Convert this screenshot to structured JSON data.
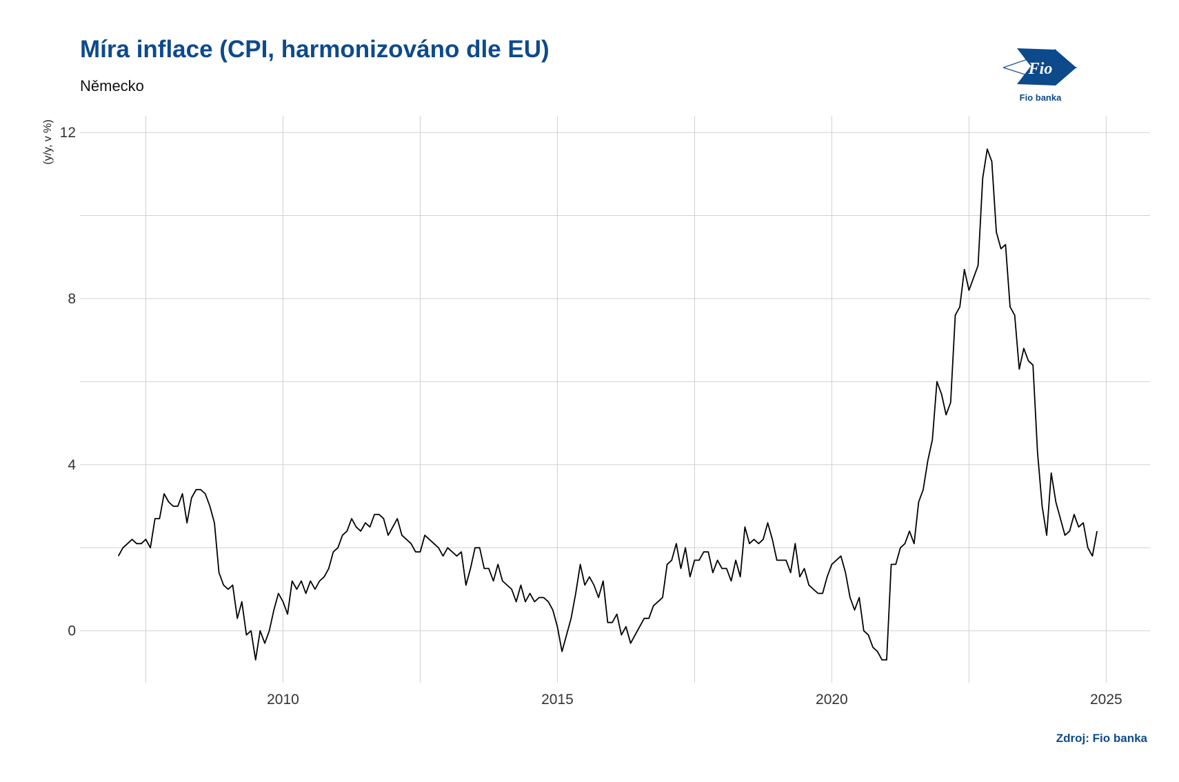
{
  "header": {
    "title": "Míra inflace (CPI, harmonizováno dle EU)",
    "subtitle": "Německo"
  },
  "logo": {
    "mark_text": "Fio",
    "name": "Fio banka",
    "brand_color": "#0d4a8c"
  },
  "source": "Zdroj: Fio banka",
  "colors": {
    "line": "#000000",
    "grid": "#d0d0d0",
    "title": "#0d4a8c"
  },
  "chart_data": {
    "type": "line",
    "title": "Míra inflace (CPI, harmonizováno dle EU)",
    "subtitle": "Německo",
    "ylabel": "(y/y, v %)",
    "xlabel": "",
    "xlim": [
      2006.3,
      2025.8
    ],
    "ylim": [
      -1.25,
      12.4
    ],
    "x_ticks": [
      2010,
      2015,
      2020,
      2025
    ],
    "x_tick_labels": [
      "2010",
      "2015",
      "2020",
      "2025"
    ],
    "y_ticks": [
      0,
      4,
      8,
      12
    ],
    "y_tick_labels": [
      "0",
      "4",
      "8",
      "12"
    ],
    "grid": true,
    "legend": "none",
    "series": [
      {
        "x_start": 2007.0,
        "x_step_months": 1,
        "values": [
          1.8,
          2.0,
          2.1,
          2.2,
          2.1,
          2.1,
          2.2,
          2.0,
          2.7,
          2.7,
          3.3,
          3.1,
          3.0,
          3.0,
          3.3,
          2.6,
          3.2,
          3.4,
          3.4,
          3.3,
          3.0,
          2.6,
          1.4,
          1.1,
          1.0,
          1.1,
          0.3,
          0.7,
          -0.1,
          0.0,
          -0.7,
          0.0,
          -0.3,
          0.0,
          0.5,
          0.9,
          0.7,
          0.4,
          1.2,
          1.0,
          1.2,
          0.9,
          1.2,
          1.0,
          1.2,
          1.3,
          1.5,
          1.9,
          2.0,
          2.3,
          2.4,
          2.7,
          2.5,
          2.4,
          2.6,
          2.5,
          2.8,
          2.8,
          2.7,
          2.3,
          2.5,
          2.7,
          2.3,
          2.2,
          2.1,
          1.9,
          1.9,
          2.3,
          2.2,
          2.1,
          2.0,
          1.8,
          2.0,
          1.9,
          1.8,
          1.9,
          1.1,
          1.5,
          2.0,
          2.0,
          1.5,
          1.5,
          1.2,
          1.6,
          1.2,
          1.1,
          1.0,
          0.7,
          1.1,
          0.7,
          0.9,
          0.7,
          0.8,
          0.8,
          0.7,
          0.5,
          0.1,
          -0.5,
          -0.1,
          0.3,
          0.9,
          1.6,
          1.1,
          1.3,
          1.1,
          0.8,
          1.2,
          0.2,
          0.2,
          0.4,
          -0.1,
          0.1,
          -0.3,
          -0.1,
          0.1,
          0.3,
          0.3,
          0.6,
          0.7,
          0.8,
          1.6,
          1.7,
          2.1,
          1.5,
          2.0,
          1.3,
          1.7,
          1.7,
          1.9,
          1.9,
          1.4,
          1.7,
          1.5,
          1.5,
          1.2,
          1.7,
          1.3,
          2.5,
          2.1,
          2.2,
          2.1,
          2.2,
          2.6,
          2.2,
          1.7,
          1.7,
          1.7,
          1.4,
          2.1,
          1.3,
          1.5,
          1.1,
          1.0,
          0.9,
          0.9,
          1.3,
          1.6,
          1.7,
          1.8,
          1.4,
          0.8,
          0.5,
          0.8,
          0.0,
          -0.1,
          -0.4,
          -0.5,
          -0.7,
          -0.7,
          1.6,
          1.6,
          2.0,
          2.1,
          2.4,
          2.1,
          3.1,
          3.4,
          4.1,
          4.6,
          6.0,
          5.7,
          5.2,
          5.5,
          7.6,
          7.8,
          8.7,
          8.2,
          8.5,
          8.8,
          10.9,
          11.6,
          11.3,
          9.6,
          9.2,
          9.3,
          7.8,
          7.6,
          6.3,
          6.8,
          6.5,
          6.4,
          4.3,
          3.0,
          2.3,
          3.8,
          3.1,
          2.7,
          2.3,
          2.4,
          2.8,
          2.5,
          2.6,
          2.0,
          1.8,
          2.4
        ]
      }
    ]
  }
}
